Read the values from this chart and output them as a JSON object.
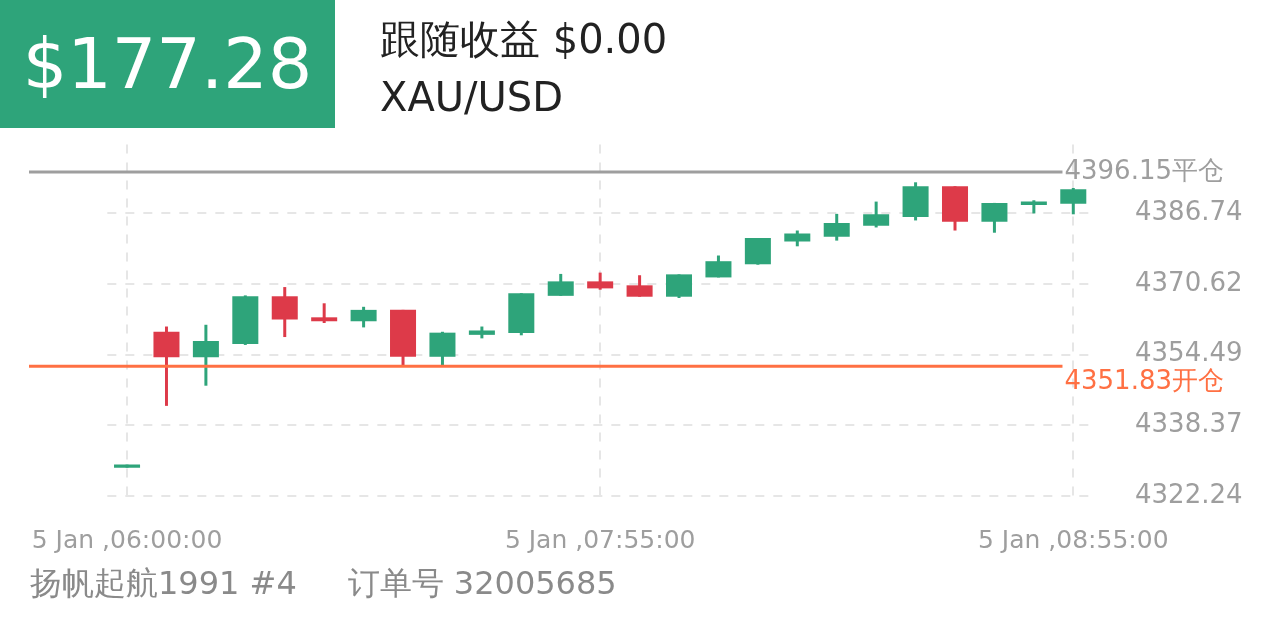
{
  "chart_data": {
    "type": "candlestick",
    "title": "$177.28",
    "subtitle": "跟随收益 $0.00",
    "annotations": [
      "XAU/USD",
      "扬帆起航1991 #4",
      "订单号 32005685"
    ],
    "categories": [
      "5 Jan ,06:00:00",
      null,
      null,
      null,
      null,
      null,
      null,
      null,
      null,
      null,
      null,
      null,
      "5 Jan ,07:55:00",
      null,
      null,
      null,
      null,
      null,
      null,
      null,
      null,
      null,
      null,
      null,
      "5 Jan ,08:55:00"
    ],
    "ohlc": [
      [
        4328.7,
        4329.4,
        4328.7,
        4329.4
      ],
      [
        4359.7,
        4360.9,
        4342.8,
        4353.9
      ],
      [
        4353.9,
        4361.3,
        4347.4,
        4357.6
      ],
      [
        4356.9,
        4368.0,
        4356.7,
        4367.8
      ],
      [
        4367.8,
        4369.9,
        4358.5,
        4362.5
      ],
      [
        4363.0,
        4366.2,
        4361.7,
        4362.1
      ],
      [
        4362.1,
        4365.4,
        4360.7,
        4364.7
      ],
      [
        4364.7,
        4364.7,
        4352.0,
        4354.0
      ],
      [
        4354.0,
        4359.7,
        4352.0,
        4359.5
      ],
      [
        4359.0,
        4360.9,
        4358.2,
        4360.0
      ],
      [
        4359.4,
        4368.5,
        4358.9,
        4368.5
      ],
      [
        4367.9,
        4372.9,
        4367.9,
        4371.2
      ],
      [
        4371.2,
        4373.2,
        4369.3,
        4369.6
      ],
      [
        4370.3,
        4372.6,
        4367.7,
        4367.7
      ],
      [
        4367.7,
        4372.8,
        4367.4,
        4372.8
      ],
      [
        4372.1,
        4377.1,
        4372.1,
        4375.8
      ],
      [
        4375.1,
        4381.1,
        4375.0,
        4381.1
      ],
      [
        4380.3,
        4382.8,
        4379.2,
        4382.1
      ],
      [
        4381.4,
        4386.6,
        4380.5,
        4384.5
      ],
      [
        4383.9,
        4389.4,
        4383.5,
        4386.5
      ],
      [
        4385.9,
        4393.8,
        4385.1,
        4392.9
      ],
      [
        4392.9,
        4392.9,
        4382.8,
        4384.8
      ],
      [
        4384.8,
        4389.1,
        4382.3,
        4389.1
      ],
      [
        4388.6,
        4389.7,
        4386.7,
        4389.4
      ],
      [
        4388.9,
        4392.5,
        4386.5,
        4392.2
      ]
    ],
    "colors": [
      "#2ea47a",
      "#dd3a49",
      "#2ea47a",
      "#2ea47a",
      "#dd3a49",
      "#dd3a49",
      "#2ea47a",
      "#dd3a49",
      "#2ea47a",
      "#2ea47a",
      "#2ea47a",
      "#2ea47a",
      "#dd3a49",
      "#dd3a49",
      "#2ea47a",
      "#2ea47a",
      "#2ea47a",
      "#2ea47a",
      "#2ea47a",
      "#2ea47a",
      "#2ea47a",
      "#dd3a49",
      "#2ea47a",
      "#2ea47a",
      "#2ea47a"
    ],
    "ylim": [
      4322.24,
      4402.4
    ],
    "yticks": [
      4322.24,
      4338.37,
      4354.49,
      4370.62,
      4386.74
    ],
    "ref_lines": [
      {
        "axis": "y",
        "value": 4396.15,
        "label": "4396.15平仓",
        "color": "#9e9e9e"
      },
      {
        "axis": "y",
        "value": 4351.83,
        "label": "4351.83开仓",
        "color": "#ff7043"
      }
    ],
    "grid": true,
    "legend": false
  }
}
